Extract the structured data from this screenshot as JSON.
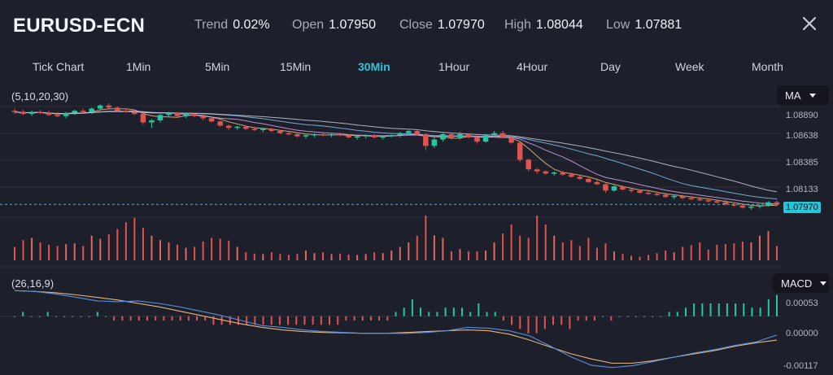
{
  "header": {
    "symbol": "EURUSD-ECN",
    "stats": [
      {
        "label": "Trend",
        "value": "0.02%"
      },
      {
        "label": "Open",
        "value": "1.07950"
      },
      {
        "label": "Close",
        "value": "1.07970"
      },
      {
        "label": "High",
        "value": "1.08044"
      },
      {
        "label": "Low",
        "value": "1.07881"
      }
    ],
    "close_icon": "close-icon"
  },
  "timeframes": [
    "Tick Chart",
    "1Min",
    "5Min",
    "15Min",
    "30Min",
    "1Hour",
    "4Hour",
    "Day",
    "Week",
    "Month"
  ],
  "active_timeframe": "30Min",
  "main_panel": {
    "params": "(5,10,20,30)",
    "indicator_select": "MA",
    "price_axis": [
      "1.08890",
      "1.08638",
      "1.08385",
      "1.08133"
    ],
    "last_price": "1.07970"
  },
  "macd_panel": {
    "params": "(26,16,9)",
    "indicator_select": "MACD",
    "axis": [
      "0.00053",
      "0.00000",
      "-0.00117"
    ]
  },
  "colors": {
    "up": "#26c6a0",
    "down": "#e0534e",
    "active_tab": "#2ec3d9",
    "last_price_line": "#26c6da",
    "background": "#1d1f2b"
  },
  "chart_data": {
    "type": "candlestick",
    "price_ylim": [
      1.0785,
      1.0892
    ],
    "last_close": 1.0797,
    "candles": [
      [
        1.0885,
        1.0887,
        1.0882,
        1.0884
      ],
      [
        1.0884,
        1.0886,
        1.0881,
        1.0882
      ],
      [
        1.0882,
        1.0885,
        1.088,
        1.0884
      ],
      [
        1.0884,
        1.0886,
        1.0882,
        1.0883
      ],
      [
        1.0883,
        1.0885,
        1.088,
        1.0881
      ],
      [
        1.0881,
        1.0884,
        1.0879,
        1.088
      ],
      [
        1.088,
        1.0884,
        1.0878,
        1.0883
      ],
      [
        1.0883,
        1.0886,
        1.0881,
        1.0885
      ],
      [
        1.0885,
        1.0887,
        1.0883,
        1.0884
      ],
      [
        1.0884,
        1.0888,
        1.0882,
        1.0887
      ],
      [
        1.0887,
        1.0891,
        1.0885,
        1.089
      ],
      [
        1.089,
        1.0892,
        1.0887,
        1.0888
      ],
      [
        1.0888,
        1.0889,
        1.0884,
        1.0885
      ],
      [
        1.0885,
        1.0887,
        1.0883,
        1.0884
      ],
      [
        1.0884,
        1.0885,
        1.0881,
        1.0882
      ],
      [
        1.0882,
        1.0883,
        1.0872,
        1.0874
      ],
      [
        1.0874,
        1.0877,
        1.0869,
        1.0876
      ],
      [
        1.0876,
        1.0882,
        1.0874,
        1.0881
      ],
      [
        1.0881,
        1.0884,
        1.0879,
        1.0883
      ],
      [
        1.0883,
        1.0884,
        1.0879,
        1.088
      ],
      [
        1.088,
        1.0883,
        1.0878,
        1.0882
      ],
      [
        1.0882,
        1.0883,
        1.0879,
        1.088
      ],
      [
        1.088,
        1.0881,
        1.0876,
        1.0878
      ],
      [
        1.0878,
        1.0879,
        1.0874,
        1.0875
      ],
      [
        1.0875,
        1.0876,
        1.087,
        1.0871
      ],
      [
        1.0871,
        1.0872,
        1.0867,
        1.0869
      ],
      [
        1.0869,
        1.0871,
        1.0867,
        1.087
      ],
      [
        1.087,
        1.0871,
        1.0867,
        1.0868
      ],
      [
        1.0868,
        1.087,
        1.0866,
        1.0867
      ],
      [
        1.0867,
        1.0869,
        1.0865,
        1.0868
      ],
      [
        1.0868,
        1.0869,
        1.0865,
        1.0866
      ],
      [
        1.0866,
        1.0867,
        1.0863,
        1.0864
      ],
      [
        1.0864,
        1.0865,
        1.0862,
        1.0863
      ],
      [
        1.0863,
        1.0864,
        1.086,
        1.0861
      ],
      [
        1.0861,
        1.0863,
        1.0859,
        1.0862
      ],
      [
        1.0862,
        1.0864,
        1.086,
        1.0863
      ],
      [
        1.0863,
        1.0864,
        1.0861,
        1.0862
      ],
      [
        1.0862,
        1.0864,
        1.086,
        1.0863
      ],
      [
        1.0863,
        1.0864,
        1.0861,
        1.0862
      ],
      [
        1.0862,
        1.0863,
        1.0859,
        1.086
      ],
      [
        1.086,
        1.0862,
        1.0858,
        1.0861
      ],
      [
        1.0861,
        1.0863,
        1.0859,
        1.0862
      ],
      [
        1.0862,
        1.0863,
        1.0859,
        1.086
      ],
      [
        1.086,
        1.0862,
        1.0858,
        1.0861
      ],
      [
        1.0861,
        1.0863,
        1.086,
        1.0862
      ],
      [
        1.0862,
        1.0865,
        1.086,
        1.0864
      ],
      [
        1.0864,
        1.0867,
        1.0862,
        1.0866
      ],
      [
        1.0866,
        1.0867,
        1.0862,
        1.0863
      ],
      [
        1.0863,
        1.0864,
        1.0848,
        1.0852
      ],
      [
        1.0852,
        1.086,
        1.085,
        1.0858
      ],
      [
        1.0858,
        1.0864,
        1.0856,
        1.0863
      ],
      [
        1.0863,
        1.0864,
        1.0858,
        1.086
      ],
      [
        1.086,
        1.0865,
        1.0858,
        1.0863
      ],
      [
        1.0863,
        1.0864,
        1.0859,
        1.086
      ],
      [
        1.086,
        1.0862,
        1.0854,
        1.0856
      ],
      [
        1.0856,
        1.0863,
        1.0855,
        1.0862
      ],
      [
        1.0862,
        1.0866,
        1.086,
        1.0864
      ],
      [
        1.0864,
        1.0866,
        1.0859,
        1.086
      ],
      [
        1.086,
        1.0861,
        1.0854,
        1.0855
      ],
      [
        1.0855,
        1.0856,
        1.0837,
        1.0839
      ],
      [
        1.0839,
        1.084,
        1.0828,
        1.083
      ],
      [
        1.083,
        1.0831,
        1.0826,
        1.0828
      ],
      [
        1.0828,
        1.0829,
        1.0825,
        1.0826
      ],
      [
        1.0826,
        1.0828,
        1.0824,
        1.0827
      ],
      [
        1.0827,
        1.0828,
        1.0824,
        1.0825
      ],
      [
        1.0825,
        1.0827,
        1.0822,
        1.0823
      ],
      [
        1.0823,
        1.0825,
        1.082,
        1.0821
      ],
      [
        1.0821,
        1.0822,
        1.0817,
        1.0818
      ],
      [
        1.0818,
        1.082,
        1.0815,
        1.0816
      ],
      [
        1.0816,
        1.0817,
        1.0808,
        1.081
      ],
      [
        1.081,
        1.0815,
        1.0809,
        1.0814
      ],
      [
        1.0814,
        1.0815,
        1.081,
        1.0811
      ],
      [
        1.0811,
        1.0812,
        1.0808,
        1.081
      ],
      [
        1.081,
        1.0811,
        1.0807,
        1.0808
      ],
      [
        1.0808,
        1.081,
        1.0806,
        1.0807
      ],
      [
        1.0807,
        1.0809,
        1.0805,
        1.0806
      ],
      [
        1.0806,
        1.0808,
        1.0803,
        1.0804
      ],
      [
        1.0804,
        1.0806,
        1.0802,
        1.0805
      ],
      [
        1.0805,
        1.0806,
        1.0802,
        1.0803
      ],
      [
        1.0803,
        1.0805,
        1.0801,
        1.0802
      ],
      [
        1.0802,
        1.0804,
        1.08,
        1.0801
      ],
      [
        1.0801,
        1.0803,
        1.0799,
        1.08
      ],
      [
        1.08,
        1.0802,
        1.0798,
        1.0799
      ],
      [
        1.0799,
        1.0801,
        1.0796,
        1.0797
      ],
      [
        1.0797,
        1.0799,
        1.0795,
        1.0796
      ],
      [
        1.0796,
        1.0798,
        1.0793,
        1.0794
      ],
      [
        1.0794,
        1.0796,
        1.0792,
        1.0795
      ],
      [
        1.0795,
        1.0797,
        1.0793,
        1.0796
      ],
      [
        1.0796,
        1.08,
        1.0795,
        1.0799
      ],
      [
        1.0799,
        1.0801,
        1.0795,
        1.0797
      ]
    ],
    "volume": [
      30,
      45,
      50,
      40,
      35,
      32,
      36,
      38,
      32,
      55,
      48,
      58,
      70,
      85,
      95,
      72,
      55,
      45,
      40,
      35,
      28,
      30,
      42,
      50,
      48,
      44,
      30,
      18,
      15,
      14,
      18,
      14,
      12,
      14,
      22,
      16,
      18,
      14,
      15,
      13,
      12,
      14,
      18,
      16,
      22,
      30,
      40,
      55,
      100,
      56,
      50,
      20,
      25,
      20,
      20,
      22,
      40,
      60,
      80,
      55,
      50,
      100,
      80,
      55,
      40,
      45,
      32,
      50,
      28,
      38,
      20,
      14,
      10,
      8,
      12,
      16,
      22,
      18,
      30,
      34,
      40,
      24,
      35,
      36,
      38,
      42,
      40,
      55,
      65,
      32
    ],
    "macd_ylim": [
      -0.0013,
      0.0007
    ],
    "macd_hist": [
      0.0,
      0.0001,
      0.0,
      0.0,
      0.0001,
      0.0,
      0.0,
      0.0,
      0.0,
      0.0,
      0.0001,
      0.0,
      -0.0001,
      -0.0001,
      -0.0001,
      -0.0001,
      -0.0001,
      -0.0001,
      -0.0001,
      -0.0001,
      -0.0001,
      -0.0001,
      -0.0001,
      -0.0001,
      -0.0002,
      -0.0002,
      -0.0002,
      -0.0002,
      -0.0002,
      -0.0002,
      -0.0002,
      -0.0002,
      -0.0002,
      -0.0002,
      -0.0002,
      -0.0002,
      -0.0002,
      -0.0002,
      -0.0002,
      -0.0002,
      -0.0001,
      -0.0001,
      -0.0001,
      -0.0001,
      -0.0001,
      -0.0001,
      0.0001,
      0.0002,
      0.0004,
      0.0002,
      0.0001,
      0.0001,
      0.0002,
      0.0002,
      0.0002,
      0.0001,
      0.0003,
      0.0001,
      0.0001,
      -0.0001,
      -0.0002,
      -0.0003,
      -0.0004,
      -0.0004,
      -0.0003,
      -0.0002,
      -0.0002,
      -0.0003,
      -0.0001,
      -0.0001,
      -0.0001,
      0.0,
      -0.0001,
      0.0,
      0.0,
      0.0,
      0.0,
      0.0,
      0.0,
      0.0001,
      0.0001,
      0.0002,
      0.0003,
      0.0003,
      0.0003,
      0.0003,
      0.0003,
      0.0003,
      0.0003,
      0.0002,
      0.0002,
      0.0004,
      0.0005
    ],
    "macd_line": [
      0.0006,
      0.00058,
      0.00052,
      0.00044,
      0.00036,
      0.00034,
      0.00036,
      0.0003,
      0.00022,
      0.00012,
      2e-05,
      -0.0001,
      -0.00022,
      -0.00026,
      -0.00032,
      -0.00036,
      -0.00038,
      -0.0004,
      -0.0004,
      -0.0004,
      -0.00038,
      -0.00034,
      -0.00026,
      -0.00028,
      -0.00034,
      -0.00046,
      -0.0007,
      -0.00095,
      -0.00115,
      -0.0012,
      -0.00116,
      -0.00106,
      -0.00096,
      -0.00086,
      -0.00078,
      -0.00068,
      -0.0006,
      -0.00044
    ],
    "signal_line": [
      0.0006,
      0.00058,
      0.00055,
      0.0005,
      0.00044,
      0.00038,
      0.0003,
      0.00022,
      0.00012,
      2e-05,
      -8e-05,
      -0.00018,
      -0.00026,
      -0.00032,
      -0.00036,
      -0.00038,
      -0.00039,
      -0.0004,
      -0.0004,
      -0.00038,
      -0.00036,
      -0.00034,
      -0.00032,
      -0.00034,
      -0.00042,
      -0.00056,
      -0.00072,
      -0.00088,
      -0.001,
      -0.0011,
      -0.0011,
      -0.00104,
      -0.00096,
      -0.00088,
      -0.0008,
      -0.0007,
      -0.00062,
      -0.00056
    ]
  }
}
